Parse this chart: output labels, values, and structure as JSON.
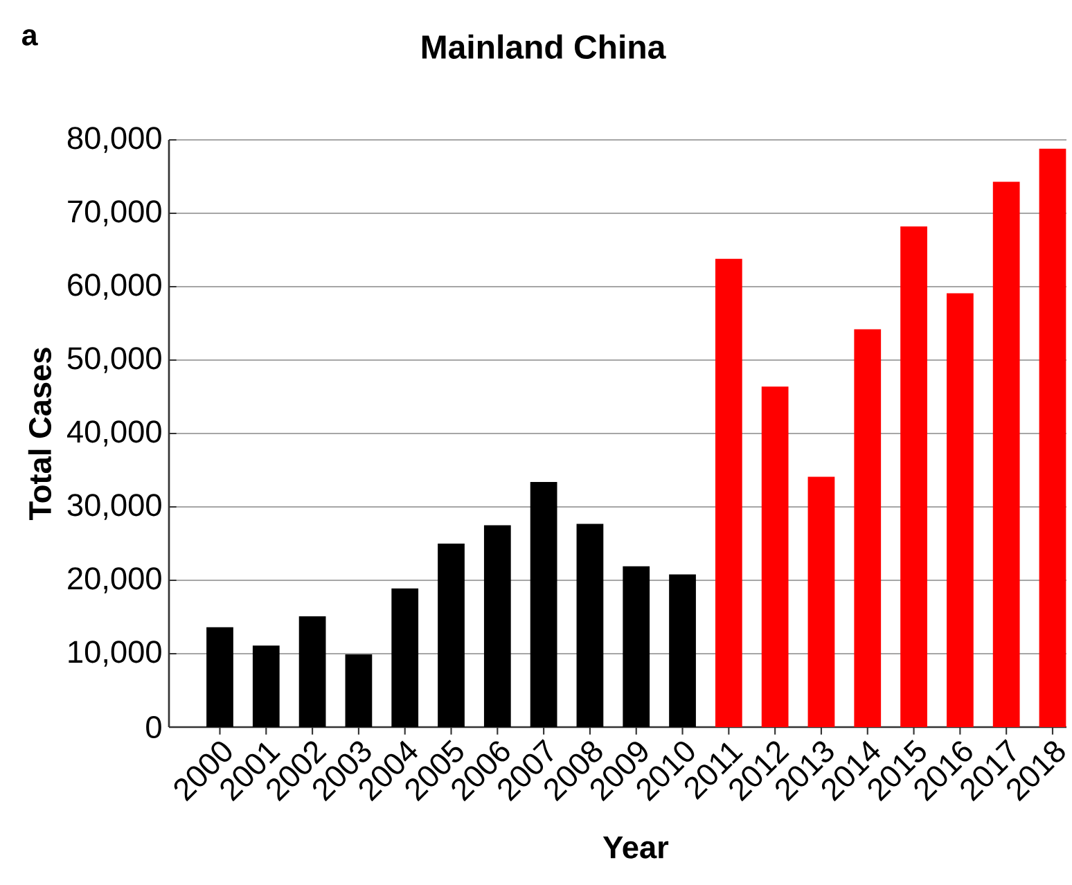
{
  "chart_data": {
    "type": "bar",
    "title": "Mainland China",
    "xlabel": "Year",
    "ylabel": "Total Cases",
    "annotations": [
      "a"
    ],
    "categories": [
      "2000",
      "2001",
      "2002",
      "2003",
      "2004",
      "2005",
      "2006",
      "2007",
      "2008",
      "2009",
      "2010",
      "2011",
      "2012",
      "2013",
      "2014",
      "2015",
      "2016",
      "2017",
      "2018"
    ],
    "values": [
      13600,
      11100,
      15100,
      9900,
      18900,
      25000,
      27500,
      33400,
      27700,
      21900,
      20800,
      63800,
      46400,
      34100,
      54200,
      68200,
      59100,
      74300,
      78800
    ],
    "colors": [
      "#000000",
      "#000000",
      "#000000",
      "#000000",
      "#000000",
      "#000000",
      "#000000",
      "#000000",
      "#000000",
      "#000000",
      "#000000",
      "#ff0000",
      "#ff0000",
      "#ff0000",
      "#ff0000",
      "#ff0000",
      "#ff0000",
      "#ff0000",
      "#ff0000"
    ],
    "ylim": [
      0,
      80000
    ],
    "yticks": [
      0,
      {
        "value": 10000,
        "label": "10,000"
      },
      {
        "value": 20000,
        "label": "20,000"
      },
      {
        "value": 30000,
        "label": "30,000"
      },
      {
        "value": 40000,
        "label": "40,000"
      },
      {
        "value": 50000,
        "label": "50,000"
      },
      {
        "value": 60000,
        "label": "60,000"
      },
      {
        "value": 70000,
        "label": "70,000"
      },
      {
        "value": 80000,
        "label": "80,000"
      }
    ],
    "grid": "y"
  }
}
